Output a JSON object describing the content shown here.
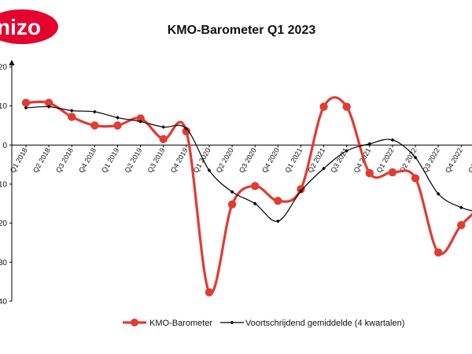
{
  "logo": {
    "text": "nizo",
    "color": "#e4032e"
  },
  "chart_data": {
    "type": "line",
    "title": "KMO-Barometer Q1 2023",
    "xlabel": "",
    "ylabel": "",
    "ylim": [
      -40,
      20
    ],
    "yticks": [
      20,
      10,
      0,
      -10,
      -20,
      -30,
      -40
    ],
    "ytick_labels": [
      "20",
      "10",
      "0",
      "10",
      "20",
      "30",
      "40"
    ],
    "categories": [
      "Q1 2018",
      "Q2 2018",
      "Q3 2018",
      "Q4 2018",
      "Q1 2019",
      "Q2 2019",
      "Q3 2019",
      "Q4 2019",
      "Q1 2020",
      "Q2 2020",
      "Q3 2020",
      "Q4 2020",
      "Q1 2021",
      "Q2 2021",
      "Q3 2021",
      "Q4 2021",
      "Q1 2022",
      "Q2 2022",
      "Q3 2022",
      "Q4 2022",
      "Q1 2023"
    ],
    "grid": false,
    "legend_position": "bottom",
    "series": [
      {
        "name": "KMO-Barometer",
        "color": "#e03c31",
        "style": "thick-smooth-circle-markers",
        "values": [
          10.8,
          10.8,
          7.2,
          5.0,
          5.0,
          6.8,
          1.5,
          3.5,
          -37.7,
          -15.2,
          -10.5,
          -14.3,
          -11.3,
          9.8,
          9.8,
          -7.2,
          -7.0,
          -8.5,
          -27.5,
          -20.5,
          -15.0
        ]
      },
      {
        "name": "Voortschrijdend gemiddelde (4 kwartalen)",
        "color": "#000000",
        "style": "thin-diamond-markers",
        "values": [
          9.5,
          9.8,
          8.8,
          8.5,
          7.0,
          6.0,
          4.6,
          4.2,
          -6.5,
          -12.0,
          -15.0,
          -19.5,
          -11.8,
          -6.0,
          -1.5,
          0.3,
          1.3,
          -3.2,
          -12.5,
          -16.0,
          -17.5
        ]
      }
    ]
  }
}
